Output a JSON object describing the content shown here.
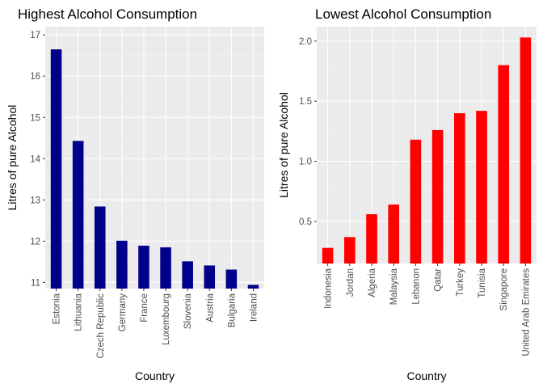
{
  "chart_data": [
    {
      "type": "bar",
      "title": "Highest Alcohol Consumption",
      "xlabel": "Country",
      "ylabel": "Litres of pure Alcohol",
      "categories": [
        "Estonia",
        "Lithuania",
        "Czech Republic",
        "Germany",
        "France",
        "Luxembourg",
        "Slovenia",
        "Austria",
        "Bulgaria",
        "Ireland"
      ],
      "values": [
        16.65,
        14.43,
        12.84,
        12.01,
        11.89,
        11.85,
        11.51,
        11.41,
        11.31,
        10.94
      ],
      "yticks": [
        11,
        12,
        13,
        14,
        15,
        16,
        17
      ],
      "ylim": [
        10.85,
        17.2
      ],
      "bar_color": "#00008b",
      "grid": true,
      "panel_background": "#ebebeb"
    },
    {
      "type": "bar",
      "title": "Lowest Alcohol Consumption",
      "xlabel": "Country",
      "ylabel": "Litres of pure Alcohol",
      "categories": [
        "Indonesia",
        "Jordan",
        "Algeria",
        "Malaysia",
        "Lebanon",
        "Qatar",
        "Turkey",
        "Tunisia",
        "Singapore",
        "United Arab Emirates"
      ],
      "values": [
        0.28,
        0.37,
        0.56,
        0.64,
        1.18,
        1.26,
        1.4,
        1.42,
        1.8,
        2.03
      ],
      "yticks": [
        0.5,
        1.0,
        1.5,
        2.0
      ],
      "ytick_labels": [
        "0.5",
        "1.0",
        "1.5",
        "2.0"
      ],
      "ylim": [
        0.15,
        2.12
      ],
      "bar_color": "#ff0000",
      "grid": true,
      "panel_background": "#ebebeb"
    }
  ]
}
